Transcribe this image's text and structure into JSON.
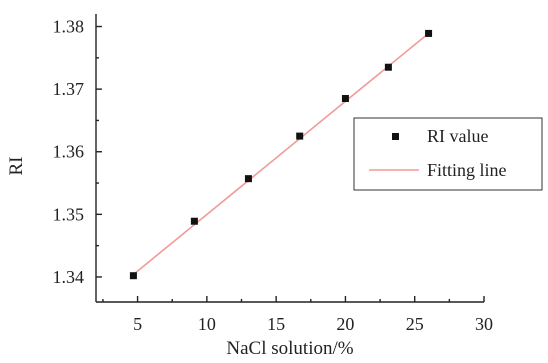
{
  "chart_data": {
    "type": "scatter",
    "title": "",
    "xlabel": "NaCl solution/%",
    "ylabel": "RI",
    "xlim": [
      2,
      30
    ],
    "ylim": [
      1.336,
      1.382
    ],
    "x_ticks": [
      5,
      10,
      15,
      20,
      25,
      30
    ],
    "y_ticks": [
      1.34,
      1.35,
      1.36,
      1.37,
      1.38
    ],
    "x_tick_labels": [
      "5",
      "10",
      "15",
      "20",
      "25",
      "30"
    ],
    "y_tick_labels": [
      "1.34",
      "1.35",
      "1.36",
      "1.37",
      "1.38"
    ],
    "grid": false,
    "legend_position": "right",
    "colors": {
      "points": "#111111",
      "fit_line": "#f29a98",
      "axis": "#222222",
      "legend_border": "#333333"
    },
    "series": [
      {
        "name": "RI value",
        "type": "scatter",
        "points": [
          {
            "x": 4.7,
            "y": 1.3402
          },
          {
            "x": 9.1,
            "y": 1.3489
          },
          {
            "x": 13.0,
            "y": 1.3557
          },
          {
            "x": 16.7,
            "y": 1.3625
          },
          {
            "x": 20.0,
            "y": 1.3685
          },
          {
            "x": 23.1,
            "y": 1.3735
          },
          {
            "x": 26.0,
            "y": 1.3789
          }
        ]
      },
      {
        "name": "Fitting line",
        "type": "line",
        "points": [
          {
            "x": 4.7,
            "y": 1.3404
          },
          {
            "x": 26.0,
            "y": 1.3789
          }
        ]
      }
    ]
  }
}
